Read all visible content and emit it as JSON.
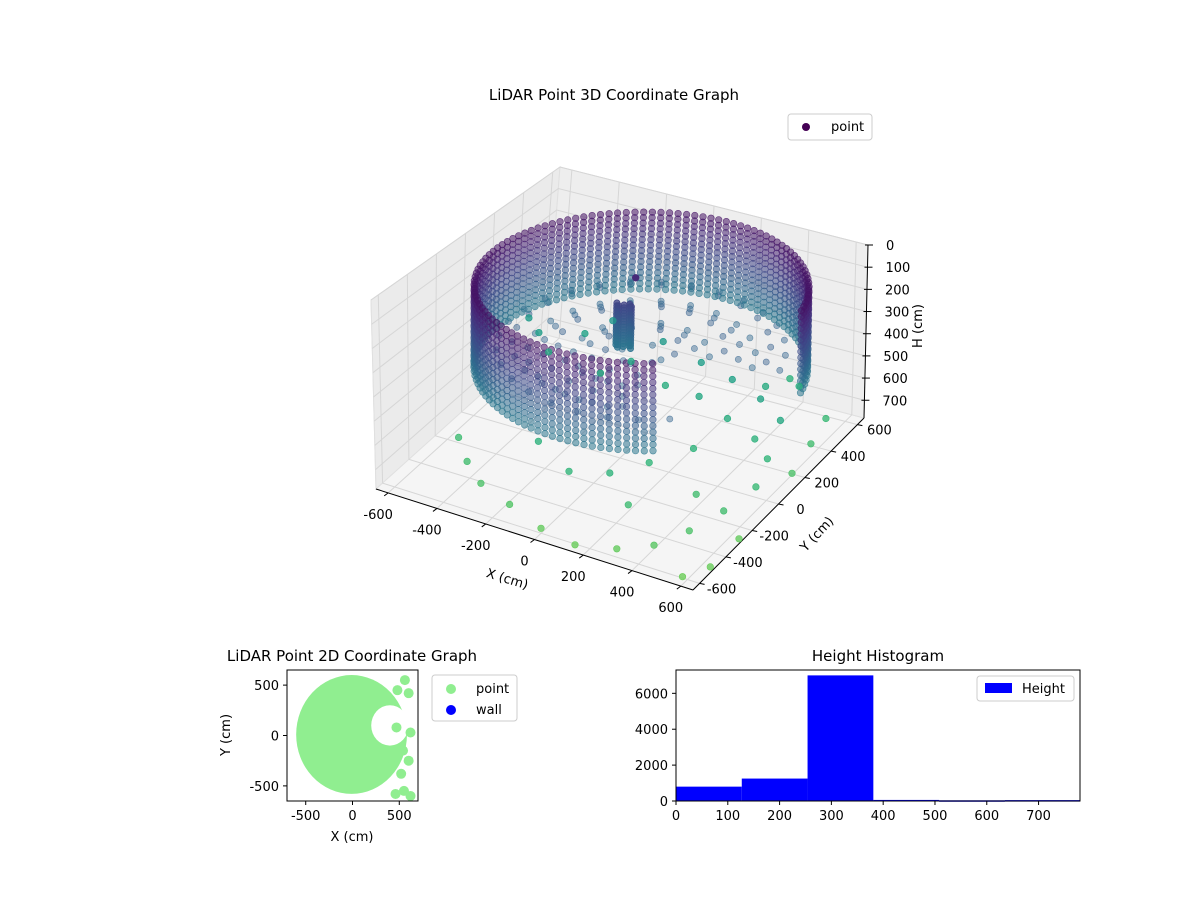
{
  "chart_data": [
    {
      "type": "scatter3d",
      "title": "LiDAR Point 3D Coordinate Graph",
      "xlabel": "X (cm)",
      "ylabel": "Y (cm)",
      "zlabel": "H (cm)",
      "xlim": [
        -650,
        650
      ],
      "ylim": [
        -650,
        650
      ],
      "zlim": [
        0,
        780
      ],
      "z_inverted": true,
      "x_ticks": [
        -600,
        -400,
        -200,
        0,
        200,
        400,
        600
      ],
      "y_ticks": [
        -600,
        -400,
        -200,
        0,
        200,
        400,
        600
      ],
      "z_ticks": [
        0,
        100,
        200,
        300,
        400,
        500,
        600,
        700
      ],
      "legend": [
        "point"
      ],
      "legend_position": "upper right",
      "colormap": "viridis",
      "point_color": "#440154",
      "structures": {
        "wall_ring": {
          "center": [
            60,
            40
          ],
          "radius": 600,
          "h_range": [
            50,
            400
          ]
        },
        "floor_disk": {
          "h_min": 300,
          "h_max": 380,
          "radius": 550
        },
        "central_pillar": {
          "x": -60,
          "y": 120,
          "h_top": 200,
          "h_bottom": 380
        }
      },
      "scattered_points": [
        [
          -590,
          380,
          540
        ],
        [
          -520,
          330,
          560
        ],
        [
          -450,
          280,
          600
        ],
        [
          -380,
          420,
          570
        ],
        [
          -300,
          480,
          520
        ],
        [
          -220,
          250,
          610
        ],
        [
          -150,
          350,
          590
        ],
        [
          -80,
          460,
          540
        ],
        [
          20,
          300,
          620
        ],
        [
          100,
          420,
          560
        ],
        [
          180,
          260,
          600
        ],
        [
          250,
          380,
          570
        ],
        [
          330,
          200,
          620
        ],
        [
          400,
          320,
          580
        ],
        [
          470,
          150,
          640
        ],
        [
          520,
          250,
          600
        ],
        [
          560,
          80,
          660
        ],
        [
          600,
          -80,
          680
        ],
        [
          560,
          -250,
          700
        ],
        [
          500,
          -400,
          720
        ],
        [
          420,
          -520,
          740
        ],
        [
          300,
          -580,
          760
        ],
        [
          150,
          -620,
          770
        ],
        [
          0,
          -600,
          760
        ],
        [
          -150,
          -560,
          730
        ],
        [
          -300,
          -500,
          720
        ],
        [
          -400,
          -420,
          700
        ],
        [
          -500,
          -300,
          690
        ],
        [
          450,
          520,
          620
        ],
        [
          380,
          580,
          640
        ],
        [
          620,
          300,
          700
        ],
        [
          640,
          120,
          720
        ],
        [
          600,
          450,
          680
        ],
        [
          650,
          -300,
          760
        ],
        [
          640,
          -500,
          770
        ],
        [
          580,
          -600,
          775
        ],
        [
          250,
          -400,
          690
        ],
        [
          120,
          -300,
          650
        ],
        [
          -20,
          -350,
          660
        ],
        [
          -200,
          -250,
          640
        ],
        [
          300,
          0,
          650
        ],
        [
          200,
          -150,
          660
        ],
        [
          420,
          -200,
          700
        ],
        [
          350,
          450,
          610
        ]
      ]
    },
    {
      "type": "scatter",
      "title": "LiDAR Point 2D Coordinate Graph",
      "xlabel": "X (cm)",
      "ylabel": "Y (cm)",
      "xlim": [
        -700,
        700
      ],
      "ylim": [
        -650,
        650
      ],
      "x_ticks": [
        -500,
        0,
        500
      ],
      "y_ticks": [
        -500,
        0,
        500
      ],
      "legend_position": "outside right",
      "series": [
        {
          "name": "point",
          "color": "#90ee90",
          "shape": "disk",
          "center": [
            -10,
            10
          ],
          "radius": 560,
          "cutout": {
            "center": [
              400,
              100
            ],
            "radius": 200
          },
          "extra_points": [
            [
              480,
              450
            ],
            [
              560,
              550
            ],
            [
              600,
              420
            ],
            [
              420,
              -300
            ],
            [
              520,
              -380
            ],
            [
              600,
              -250
            ],
            [
              550,
              -550
            ],
            [
              460,
              -580
            ],
            [
              620,
              -600
            ],
            [
              540,
              -150
            ],
            [
              470,
              80
            ],
            [
              620,
              30
            ]
          ]
        },
        {
          "name": "wall",
          "color": "#0000ff",
          "points": []
        }
      ]
    },
    {
      "type": "bar",
      "title": "Height Histogram",
      "xlabel": "",
      "ylabel": "",
      "xlim": [
        0,
        780
      ],
      "ylim": [
        0,
        7300
      ],
      "x_ticks": [
        0,
        100,
        200,
        300,
        400,
        500,
        600,
        700
      ],
      "y_ticks": [
        0,
        2000,
        4000,
        6000
      ],
      "bins": [
        [
          0,
          127,
          800
        ],
        [
          127,
          254,
          1250
        ],
        [
          254,
          381,
          7000
        ],
        [
          381,
          508,
          60
        ],
        [
          508,
          635,
          40
        ],
        [
          635,
          780,
          50
        ]
      ],
      "color": "#0000ff",
      "legend": [
        "Height"
      ],
      "legend_position": "upper right"
    }
  ]
}
